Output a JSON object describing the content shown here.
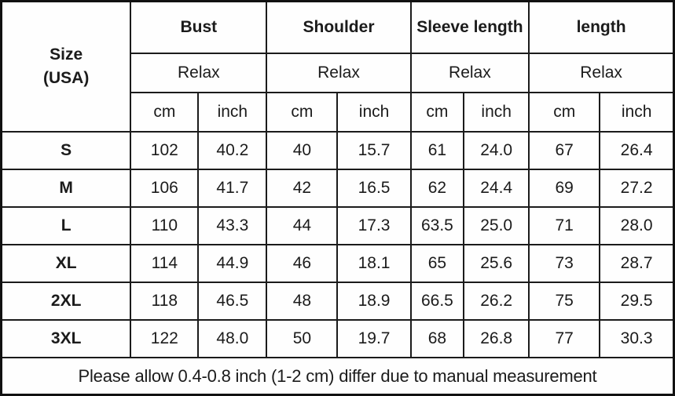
{
  "table": {
    "size_header": {
      "line1": "Size",
      "line2": "(USA)"
    },
    "groups": [
      {
        "label": "Bust",
        "fit": "Relax",
        "units": [
          "cm",
          "inch"
        ]
      },
      {
        "label": "Shoulder",
        "fit": "Relax",
        "units": [
          "cm",
          "inch"
        ]
      },
      {
        "label": "Sleeve length",
        "fit": "Relax",
        "units": [
          "cm",
          "inch"
        ]
      },
      {
        "label": "length",
        "fit": "Relax",
        "units": [
          "cm",
          "inch"
        ]
      }
    ],
    "rows": [
      {
        "size": "S",
        "values": [
          "102",
          "40.2",
          "40",
          "15.7",
          "61",
          "24.0",
          "67",
          "26.4"
        ]
      },
      {
        "size": "M",
        "values": [
          "106",
          "41.7",
          "42",
          "16.5",
          "62",
          "24.4",
          "69",
          "27.2"
        ]
      },
      {
        "size": "L",
        "values": [
          "110",
          "43.3",
          "44",
          "17.3",
          "63.5",
          "25.0",
          "71",
          "28.0"
        ]
      },
      {
        "size": "XL",
        "values": [
          "114",
          "44.9",
          "46",
          "18.1",
          "65",
          "25.6",
          "73",
          "28.7"
        ]
      },
      {
        "size": "2XL",
        "values": [
          "118",
          "46.5",
          "48",
          "18.9",
          "66.5",
          "26.2",
          "75",
          "29.5"
        ]
      },
      {
        "size": "3XL",
        "values": [
          "122",
          "48.0",
          "50",
          "19.7",
          "68",
          "26.8",
          "77",
          "30.3"
        ]
      }
    ],
    "footer": "Please allow 0.4-0.8 inch (1-2 cm) differ due to manual measurement"
  },
  "chart_data": {
    "type": "table",
    "columns": [
      "Size (USA)",
      "Bust Relax cm",
      "Bust Relax inch",
      "Shoulder Relax cm",
      "Shoulder Relax inch",
      "Sleeve length Relax cm",
      "Sleeve length Relax inch",
      "length Relax cm",
      "length Relax inch"
    ],
    "rows": [
      [
        "S",
        102,
        40.2,
        40,
        15.7,
        61,
        24.0,
        67,
        26.4
      ],
      [
        "M",
        106,
        41.7,
        42,
        16.5,
        62,
        24.4,
        69,
        27.2
      ],
      [
        "L",
        110,
        43.3,
        44,
        17.3,
        63.5,
        25.0,
        71,
        28.0
      ],
      [
        "XL",
        114,
        44.9,
        46,
        18.1,
        65,
        25.6,
        73,
        28.7
      ],
      [
        "2XL",
        118,
        46.5,
        48,
        18.9,
        66.5,
        26.2,
        75,
        29.5
      ],
      [
        "3XL",
        122,
        48.0,
        50,
        19.7,
        68,
        26.8,
        77,
        30.3
      ]
    ],
    "note": "Please allow 0.4-0.8 inch (1-2 cm) differ due to manual measurement"
  }
}
